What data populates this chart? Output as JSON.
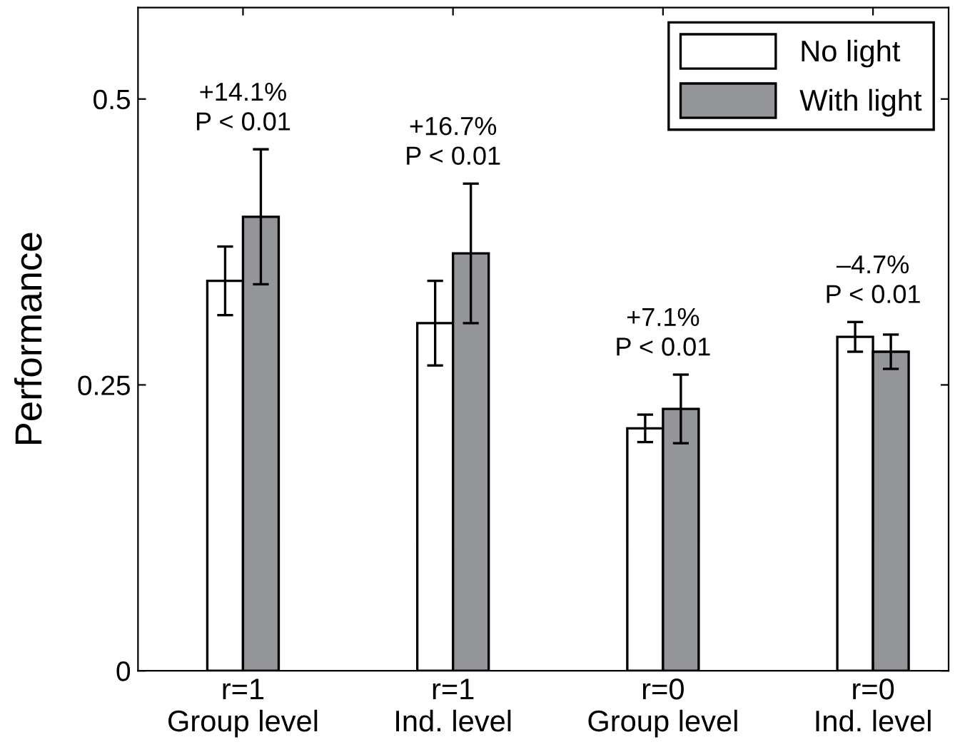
{
  "chart_data": {
    "type": "bar",
    "ylabel": "Performance",
    "categories": [
      "r=1\nGroup level",
      "r=1\nInd. level",
      "r=0\nGroup level",
      "r=0\nInd. level"
    ],
    "series": [
      {
        "name": "No light",
        "color": "#ffffff",
        "values": [
          0.341,
          0.304,
          0.212,
          0.292
        ],
        "errors": [
          0.03,
          0.037,
          0.012,
          0.013
        ]
      },
      {
        "name": "With light",
        "color": "#939598",
        "values": [
          0.397,
          0.365,
          0.229,
          0.279
        ],
        "errors": [
          0.059,
          0.061,
          0.03,
          0.015
        ]
      }
    ],
    "ylim": [
      0,
      0.58
    ],
    "yticks": [
      0,
      0.25,
      0.5
    ],
    "grid": false,
    "legend": "top right",
    "annotations": [
      "+14.1%\nP < 0.01",
      "+16.7%\nP < 0.01",
      "+7.1%\nP < 0.01",
      "–4.7%\nP < 0.01"
    ]
  }
}
